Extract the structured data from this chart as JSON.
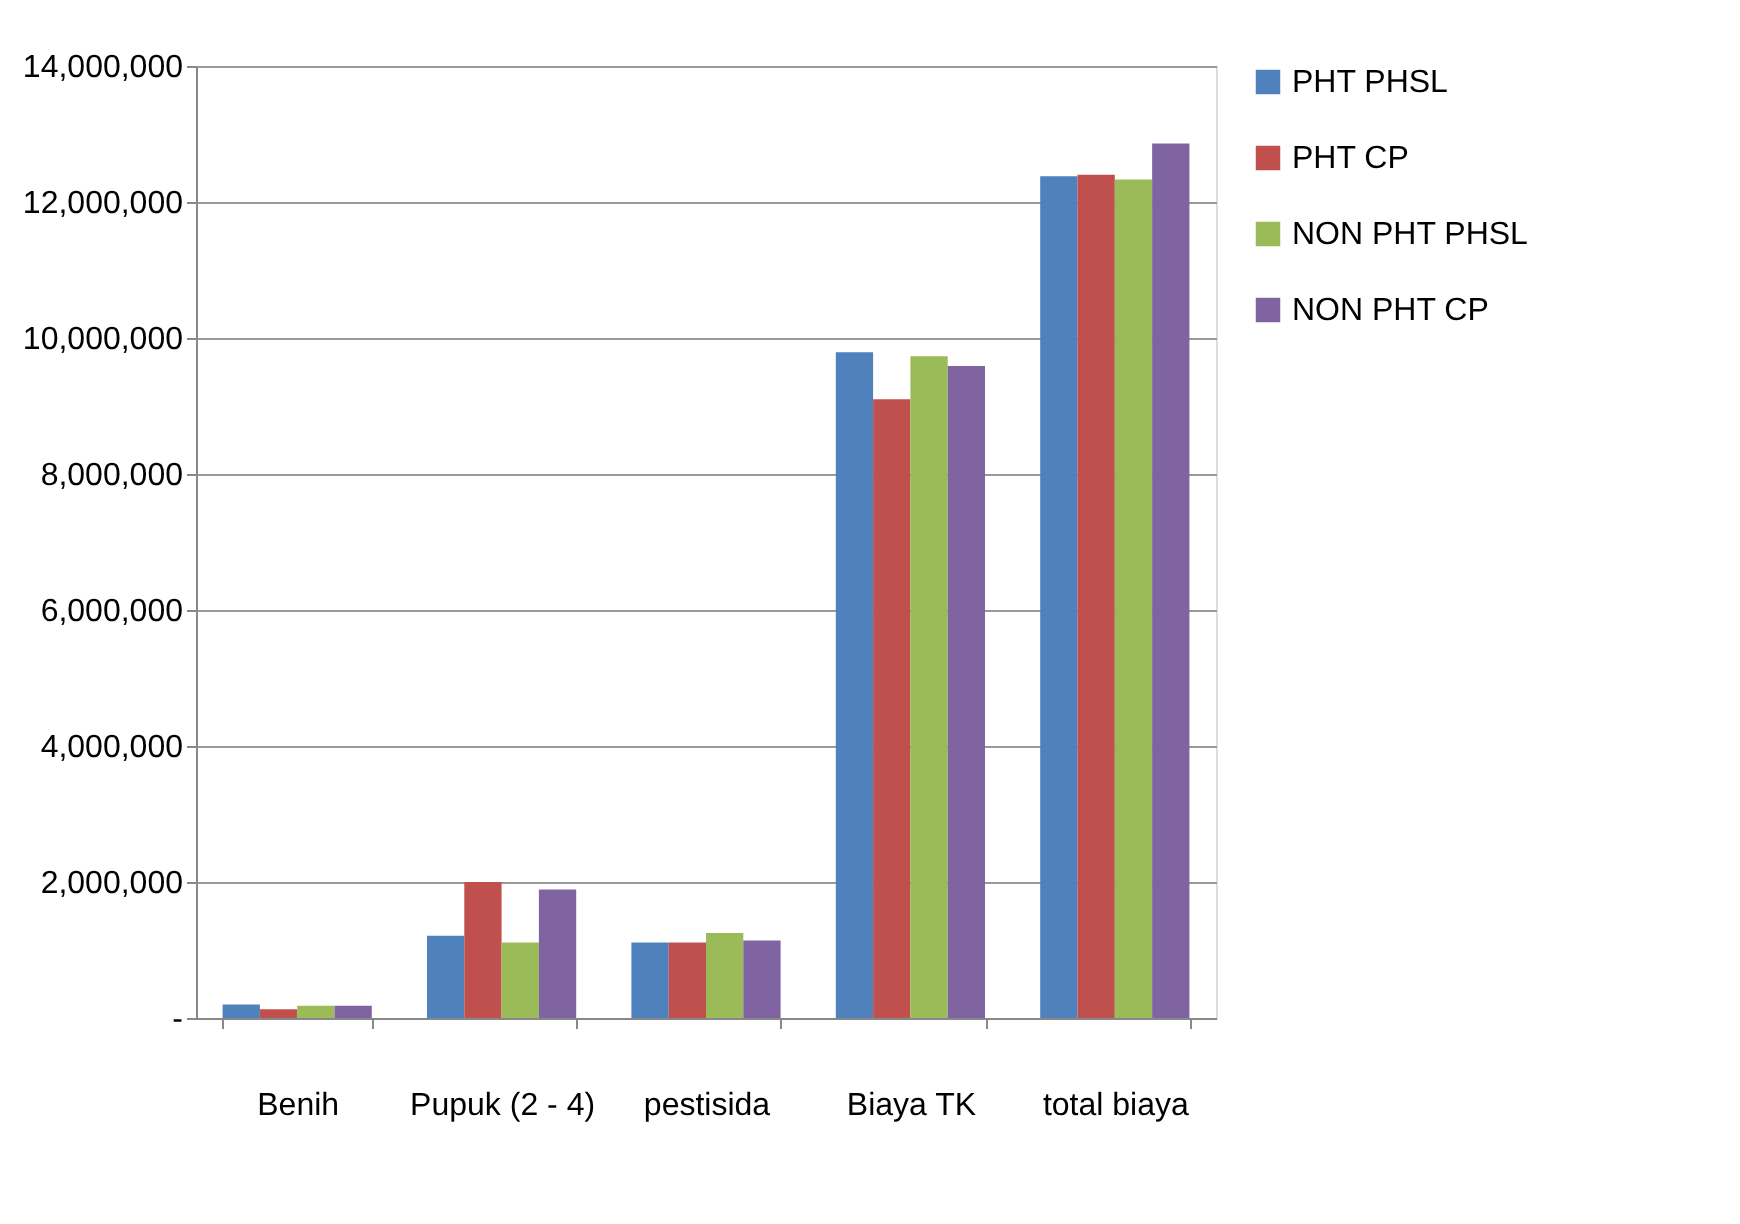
{
  "chart_data": {
    "type": "bar",
    "categories": [
      "Benih",
      "Pupuk (2 - 4)",
      "pestisida",
      "Biaya TK",
      "total biaya"
    ],
    "series": [
      {
        "name": "PHT PHSL",
        "color": "#4f81bd",
        "values": [
          200000,
          1210000,
          1110000,
          9790000,
          12380000
        ]
      },
      {
        "name": "PHT  CP",
        "color": "#c0504d",
        "values": [
          130000,
          2000000,
          1110000,
          9100000,
          12400000
        ]
      },
      {
        "name": "NON PHT PHSL",
        "color": "#9bbb59",
        "values": [
          180000,
          1110000,
          1250000,
          9730000,
          12330000
        ]
      },
      {
        "name": "NON PHT CP",
        "color": "#8064a2",
        "values": [
          180000,
          1890000,
          1140000,
          9590000,
          12860000
        ]
      }
    ],
    "ylim": [
      0,
      14000000
    ],
    "yticks": [
      {
        "value": 0,
        "label": "-"
      },
      {
        "value": 2000000,
        "label": "2,000,000"
      },
      {
        "value": 4000000,
        "label": "4,000,000"
      },
      {
        "value": 6000000,
        "label": "6,000,000"
      },
      {
        "value": 8000000,
        "label": "8,000,000"
      },
      {
        "value": 10000000,
        "label": "10,000,000"
      },
      {
        "value": 12000000,
        "label": "12,000,000"
      },
      {
        "value": 14000000,
        "label": "14,000,000"
      }
    ],
    "grid": "y",
    "legend": "right"
  }
}
